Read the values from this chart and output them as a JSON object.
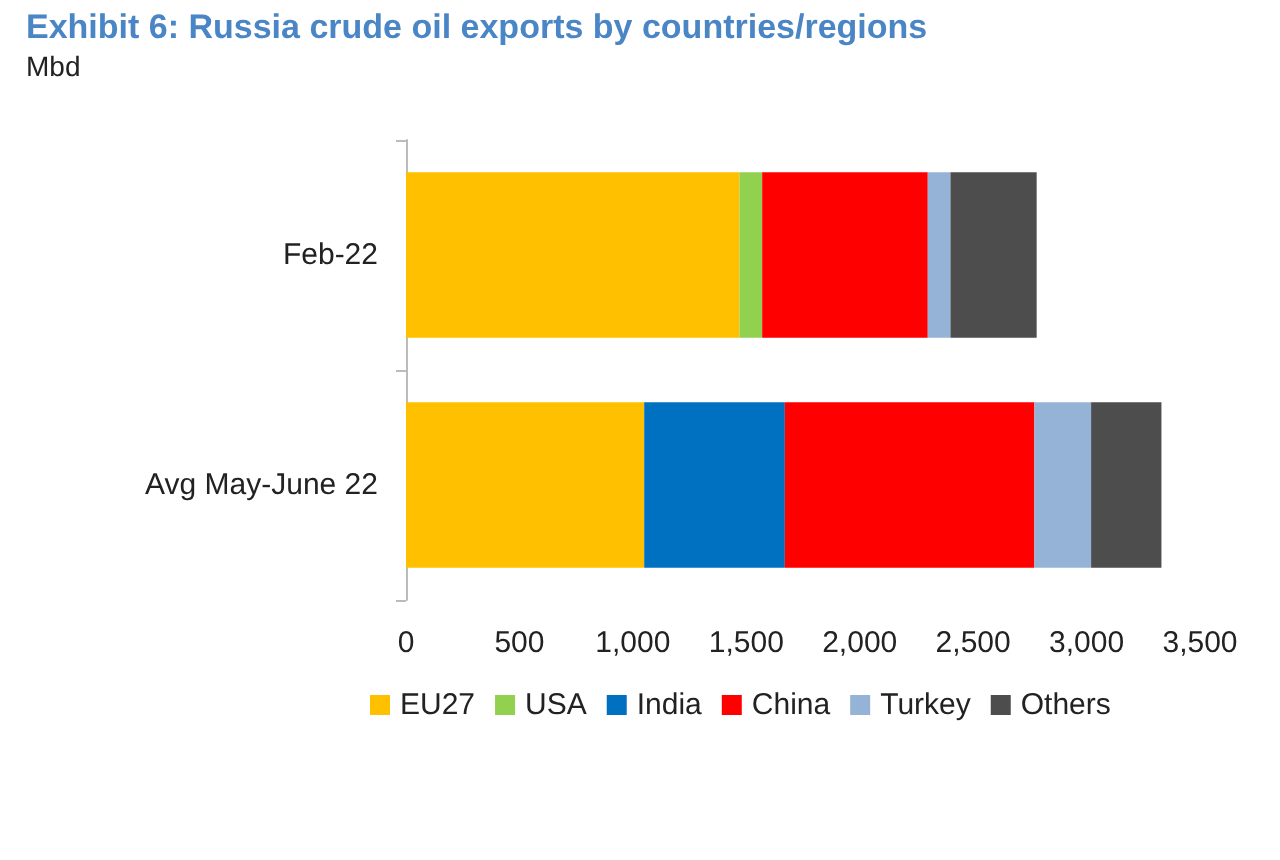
{
  "chart_data": {
    "type": "bar",
    "title": "Exhibit 6: Russia crude oil exports by countries/regions",
    "subtitle": "Mbd",
    "orientation": "horizontal",
    "stacked": true,
    "categories": [
      "Feb-22",
      "Avg May-June 22"
    ],
    "series": [
      {
        "name": "EU27",
        "color": "#ffc000",
        "values": [
          1470,
          1050
        ]
      },
      {
        "name": "USA",
        "color": "#92d050",
        "values": [
          100,
          null
        ]
      },
      {
        "name": "India",
        "color": "#0070c0",
        "values": [
          null,
          620
        ]
      },
      {
        "name": "China",
        "color": "#ff0000",
        "values": [
          730,
          1100
        ]
      },
      {
        "name": "Turkey",
        "color": "#95b3d7",
        "values": [
          100,
          250
        ]
      },
      {
        "name": "Others",
        "color": "#4d4d4d",
        "values": [
          380,
          310
        ]
      }
    ],
    "xlim": [
      0,
      3500
    ],
    "xticks": [
      0,
      500,
      {
        "value": 1000,
        "label": "1,000"
      },
      {
        "value": 1500,
        "label": "1,500"
      },
      {
        "value": 2000,
        "label": "2,000"
      },
      {
        "value": 2500,
        "label": "2,500"
      },
      {
        "value": 3000,
        "label": "3,000"
      },
      {
        "value": 3500,
        "label": "3,500"
      }
    ],
    "grid": false,
    "legend": "bottom"
  }
}
